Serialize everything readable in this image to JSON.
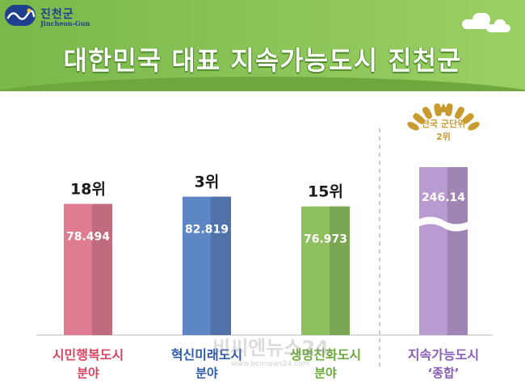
{
  "header": {
    "logo_name": "진천군",
    "logo_sub": "Jincheon-Gun",
    "title": "대한민국 대표 지속가능도시 진천군"
  },
  "badge": {
    "line1": "전국 군단위",
    "line2": "2위"
  },
  "watermark": {
    "main": "비씨엔뉴스24",
    "sub": "www.bcnnews24.com"
  },
  "colors": {
    "header_green": "#8cc55a",
    "title_shadow": "#4f8b2a",
    "gold": "#c99a2e"
  },
  "chart_data": {
    "type": "bar",
    "categories": [
      {
        "line1": "시민행복도시",
        "line2": "분야"
      },
      {
        "line1": "혁신미래도시",
        "line2": "분야"
      },
      {
        "line1": "생명친화도시",
        "line2": "분야"
      },
      {
        "line1": "지속가능도시",
        "line2": "‘종합’"
      }
    ],
    "values": [
      78.494,
      82.819,
      76.973,
      246.14
    ],
    "value_labels": [
      "78.494",
      "82.819",
      "76.973",
      "246.14"
    ],
    "rank_labels": [
      "18위",
      "3위",
      "15위",
      ""
    ],
    "bar_colors": [
      "#e07c92",
      "#5c86c4",
      "#8ec060",
      "#b99ad1"
    ],
    "label_colors": [
      "#d9455f",
      "#2f5aa8",
      "#6aa83a",
      "#8a5fb8"
    ],
    "axis_break_on_last_bar": true
  }
}
